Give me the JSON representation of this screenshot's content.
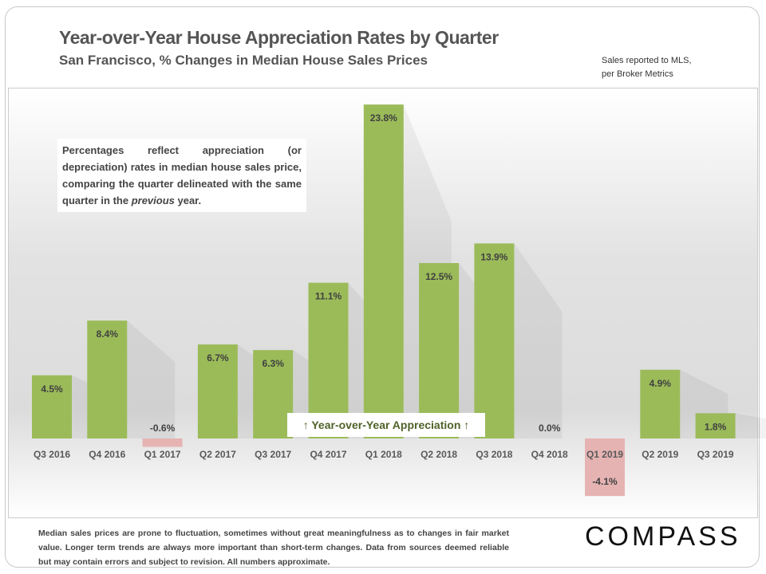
{
  "header": {
    "title": "Year-over-Year House Appreciation Rates by Quarter",
    "subtitle": "San Francisco, % Changes in Median House Sales Prices",
    "source_line1": "Sales reported to MLS,",
    "source_line2": "per Broker Metrics"
  },
  "note": {
    "text_a": "Percentages reflect appreciation (or depreciation) rates in median house sales price, comparing the quarter delineated with the same quarter in the ",
    "text_em": "previous",
    "text_b": " year."
  },
  "annotation": "↑ Year-over-Year Appreciation ↑",
  "footer": "Median sales prices are prone to fluctuation, sometimes without great meaningfulness as to changes in fair market value. Longer term trends are always more important than short-term changes. Data from sources deemed reliable but may contain errors and subject to revision. All numbers approximate.",
  "logo": "COMPASS",
  "chart_data": {
    "type": "bar",
    "title": "Year-over-Year House Appreciation Rates by Quarter",
    "subtitle": "San Francisco, % Changes in Median House Sales Prices",
    "categories": [
      "Q3 2016",
      "Q4 2016",
      "Q1 2017",
      "Q2 2017",
      "Q3 2017",
      "Q4 2017",
      "Q1 2018",
      "Q2 2018",
      "Q3 2018",
      "Q4 2018",
      "Q1 2019",
      "Q2 2019",
      "Q3 2019"
    ],
    "values": [
      4.5,
      8.4,
      -0.6,
      6.7,
      6.3,
      11.1,
      23.8,
      12.5,
      13.9,
      0.0,
      -4.1,
      4.9,
      1.8
    ],
    "data_labels": [
      "4.5%",
      "8.4%",
      "-0.6%",
      "6.7%",
      "6.3%",
      "11.1%",
      "23.8%",
      "12.5%",
      "13.9%",
      "0.0%",
      "-4.1%",
      "4.9%",
      "1.8%"
    ],
    "colors": {
      "positive": "#9bbb59",
      "negative": "#e6b3b3"
    },
    "grid": false,
    "ylim": [
      -5,
      25
    ]
  }
}
